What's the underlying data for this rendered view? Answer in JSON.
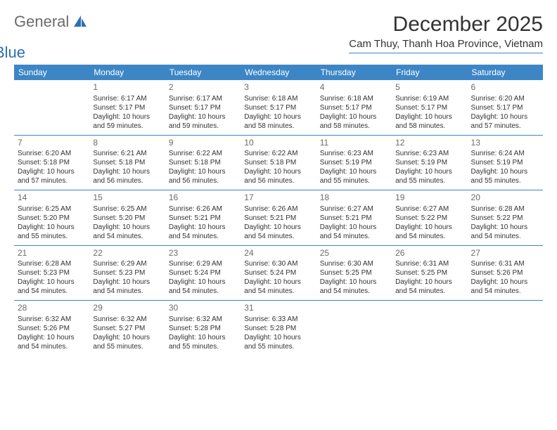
{
  "logo": {
    "general": "General",
    "blue": "Blue"
  },
  "title": "December 2025",
  "location": "Cam Thuy, Thanh Hoa Province, Vietnam",
  "colors": {
    "header_bg": "#3d86c6",
    "header_text": "#ffffff",
    "border": "#3d86c6",
    "logo_general": "#6b6b6b",
    "logo_blue": "#2d6fb5",
    "text": "#333333",
    "day_number": "#6b6b6b",
    "background": "#ffffff"
  },
  "fonts": {
    "title_size": 30,
    "location_size": 15,
    "dayheader_size": 12,
    "daynum_size": 12,
    "body_size": 10,
    "logo_size": 22
  },
  "day_names": [
    "Sunday",
    "Monday",
    "Tuesday",
    "Wednesday",
    "Thursday",
    "Friday",
    "Saturday"
  ],
  "weeks": [
    [
      {
        "n": "",
        "sr": "",
        "ss": "",
        "dl": ""
      },
      {
        "n": "1",
        "sr": "Sunrise: 6:17 AM",
        "ss": "Sunset: 5:17 PM",
        "dl": "Daylight: 10 hours and 59 minutes."
      },
      {
        "n": "2",
        "sr": "Sunrise: 6:17 AM",
        "ss": "Sunset: 5:17 PM",
        "dl": "Daylight: 10 hours and 59 minutes."
      },
      {
        "n": "3",
        "sr": "Sunrise: 6:18 AM",
        "ss": "Sunset: 5:17 PM",
        "dl": "Daylight: 10 hours and 58 minutes."
      },
      {
        "n": "4",
        "sr": "Sunrise: 6:18 AM",
        "ss": "Sunset: 5:17 PM",
        "dl": "Daylight: 10 hours and 58 minutes."
      },
      {
        "n": "5",
        "sr": "Sunrise: 6:19 AM",
        "ss": "Sunset: 5:17 PM",
        "dl": "Daylight: 10 hours and 58 minutes."
      },
      {
        "n": "6",
        "sr": "Sunrise: 6:20 AM",
        "ss": "Sunset: 5:17 PM",
        "dl": "Daylight: 10 hours and 57 minutes."
      }
    ],
    [
      {
        "n": "7",
        "sr": "Sunrise: 6:20 AM",
        "ss": "Sunset: 5:18 PM",
        "dl": "Daylight: 10 hours and 57 minutes."
      },
      {
        "n": "8",
        "sr": "Sunrise: 6:21 AM",
        "ss": "Sunset: 5:18 PM",
        "dl": "Daylight: 10 hours and 56 minutes."
      },
      {
        "n": "9",
        "sr": "Sunrise: 6:22 AM",
        "ss": "Sunset: 5:18 PM",
        "dl": "Daylight: 10 hours and 56 minutes."
      },
      {
        "n": "10",
        "sr": "Sunrise: 6:22 AM",
        "ss": "Sunset: 5:18 PM",
        "dl": "Daylight: 10 hours and 56 minutes."
      },
      {
        "n": "11",
        "sr": "Sunrise: 6:23 AM",
        "ss": "Sunset: 5:19 PM",
        "dl": "Daylight: 10 hours and 55 minutes."
      },
      {
        "n": "12",
        "sr": "Sunrise: 6:23 AM",
        "ss": "Sunset: 5:19 PM",
        "dl": "Daylight: 10 hours and 55 minutes."
      },
      {
        "n": "13",
        "sr": "Sunrise: 6:24 AM",
        "ss": "Sunset: 5:19 PM",
        "dl": "Daylight: 10 hours and 55 minutes."
      }
    ],
    [
      {
        "n": "14",
        "sr": "Sunrise: 6:25 AM",
        "ss": "Sunset: 5:20 PM",
        "dl": "Daylight: 10 hours and 55 minutes."
      },
      {
        "n": "15",
        "sr": "Sunrise: 6:25 AM",
        "ss": "Sunset: 5:20 PM",
        "dl": "Daylight: 10 hours and 54 minutes."
      },
      {
        "n": "16",
        "sr": "Sunrise: 6:26 AM",
        "ss": "Sunset: 5:21 PM",
        "dl": "Daylight: 10 hours and 54 minutes."
      },
      {
        "n": "17",
        "sr": "Sunrise: 6:26 AM",
        "ss": "Sunset: 5:21 PM",
        "dl": "Daylight: 10 hours and 54 minutes."
      },
      {
        "n": "18",
        "sr": "Sunrise: 6:27 AM",
        "ss": "Sunset: 5:21 PM",
        "dl": "Daylight: 10 hours and 54 minutes."
      },
      {
        "n": "19",
        "sr": "Sunrise: 6:27 AM",
        "ss": "Sunset: 5:22 PM",
        "dl": "Daylight: 10 hours and 54 minutes."
      },
      {
        "n": "20",
        "sr": "Sunrise: 6:28 AM",
        "ss": "Sunset: 5:22 PM",
        "dl": "Daylight: 10 hours and 54 minutes."
      }
    ],
    [
      {
        "n": "21",
        "sr": "Sunrise: 6:28 AM",
        "ss": "Sunset: 5:23 PM",
        "dl": "Daylight: 10 hours and 54 minutes."
      },
      {
        "n": "22",
        "sr": "Sunrise: 6:29 AM",
        "ss": "Sunset: 5:23 PM",
        "dl": "Daylight: 10 hours and 54 minutes."
      },
      {
        "n": "23",
        "sr": "Sunrise: 6:29 AM",
        "ss": "Sunset: 5:24 PM",
        "dl": "Daylight: 10 hours and 54 minutes."
      },
      {
        "n": "24",
        "sr": "Sunrise: 6:30 AM",
        "ss": "Sunset: 5:24 PM",
        "dl": "Daylight: 10 hours and 54 minutes."
      },
      {
        "n": "25",
        "sr": "Sunrise: 6:30 AM",
        "ss": "Sunset: 5:25 PM",
        "dl": "Daylight: 10 hours and 54 minutes."
      },
      {
        "n": "26",
        "sr": "Sunrise: 6:31 AM",
        "ss": "Sunset: 5:25 PM",
        "dl": "Daylight: 10 hours and 54 minutes."
      },
      {
        "n": "27",
        "sr": "Sunrise: 6:31 AM",
        "ss": "Sunset: 5:26 PM",
        "dl": "Daylight: 10 hours and 54 minutes."
      }
    ],
    [
      {
        "n": "28",
        "sr": "Sunrise: 6:32 AM",
        "ss": "Sunset: 5:26 PM",
        "dl": "Daylight: 10 hours and 54 minutes."
      },
      {
        "n": "29",
        "sr": "Sunrise: 6:32 AM",
        "ss": "Sunset: 5:27 PM",
        "dl": "Daylight: 10 hours and 55 minutes."
      },
      {
        "n": "30",
        "sr": "Sunrise: 6:32 AM",
        "ss": "Sunset: 5:28 PM",
        "dl": "Daylight: 10 hours and 55 minutes."
      },
      {
        "n": "31",
        "sr": "Sunrise: 6:33 AM",
        "ss": "Sunset: 5:28 PM",
        "dl": "Daylight: 10 hours and 55 minutes."
      },
      {
        "n": "",
        "sr": "",
        "ss": "",
        "dl": ""
      },
      {
        "n": "",
        "sr": "",
        "ss": "",
        "dl": ""
      },
      {
        "n": "",
        "sr": "",
        "ss": "",
        "dl": ""
      }
    ]
  ]
}
